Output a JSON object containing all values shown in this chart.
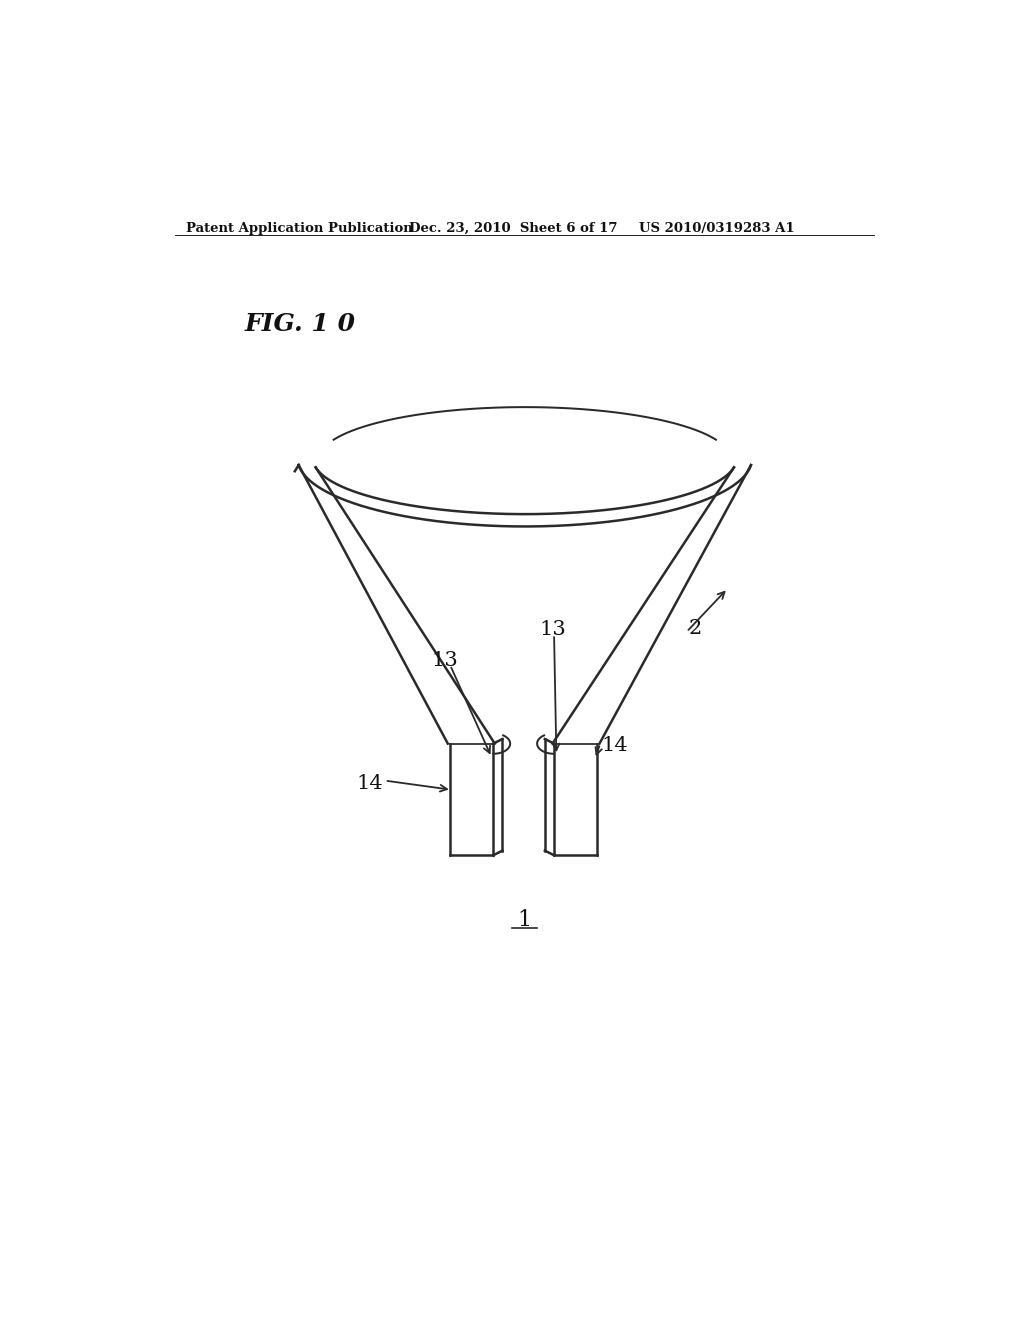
{
  "bg_color": "#ffffff",
  "header_left": "Patent Application Publication",
  "header_mid": "Dec. 23, 2010  Sheet 6 of 17",
  "header_right": "US 2010/0319283 A1",
  "fig_label": "FIG. 1 0",
  "label_1": "1",
  "label_2": "2",
  "label_13a": "13",
  "label_13b": "13",
  "label_14a": "14",
  "label_14b": "14",
  "line_color": "#2a2a2a",
  "line_width": 1.8
}
